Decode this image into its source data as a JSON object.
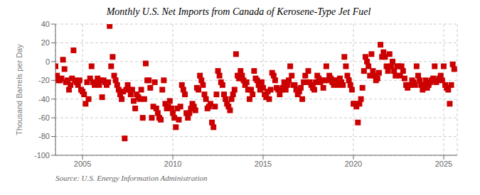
{
  "chart_data": {
    "type": "scatter",
    "title": "Monthly U.S. Net Imports from Canada of Kerosene-Type Jet Fuel",
    "ylabel": "Thousand Barrels per Day",
    "annotations": [
      "Source: U.S. Energy Information Administration"
    ],
    "color": "#cc0000",
    "marker": "square",
    "grid": true,
    "xlim": [
      2003.5,
      2025.75
    ],
    "xticks": [
      2005,
      2010,
      2015,
      2020,
      2025
    ],
    "ylim": [
      -100,
      40
    ],
    "yticks": [
      -100,
      -80,
      -60,
      -40,
      -20,
      0,
      20,
      40
    ],
    "x": [
      2003.5,
      2003.5833,
      2003.6667,
      2003.75,
      2003.8333,
      2003.9167,
      2004,
      2004.0833,
      2004.1667,
      2004.25,
      2004.3333,
      2004.4167,
      2004.5,
      2004.5833,
      2004.6667,
      2004.75,
      2004.8333,
      2004.9167,
      2005,
      2005.0833,
      2005.1667,
      2005.25,
      2005.3333,
      2005.4167,
      2005.5,
      2005.5833,
      2005.6667,
      2005.75,
      2005.8333,
      2005.9167,
      2006,
      2006.0833,
      2006.1667,
      2006.25,
      2006.3333,
      2006.4167,
      2006.5,
      2006.5833,
      2006.6667,
      2006.75,
      2006.8333,
      2006.9167,
      2007,
      2007.0833,
      2007.1667,
      2007.25,
      2007.3333,
      2007.4167,
      2007.5,
      2007.5833,
      2007.6667,
      2007.75,
      2007.8333,
      2007.9167,
      2008,
      2008.0833,
      2008.1667,
      2008.25,
      2008.3333,
      2008.4167,
      2008.5,
      2008.5833,
      2008.6667,
      2008.75,
      2008.8333,
      2008.9167,
      2009,
      2009.0833,
      2009.1667,
      2009.25,
      2009.3333,
      2009.4167,
      2009.5,
      2009.5833,
      2009.6667,
      2009.75,
      2009.8333,
      2009.9167,
      2010,
      2010.0833,
      2010.1667,
      2010.25,
      2010.3333,
      2010.4167,
      2010.5,
      2010.5833,
      2010.6667,
      2010.75,
      2010.8333,
      2010.9167,
      2011,
      2011.0833,
      2011.1667,
      2011.25,
      2011.3333,
      2011.4167,
      2011.5,
      2011.5833,
      2011.6667,
      2011.75,
      2011.8333,
      2011.9167,
      2012,
      2012.0833,
      2012.1667,
      2012.25,
      2012.3333,
      2012.4167,
      2012.5,
      2012.5833,
      2012.6667,
      2012.75,
      2012.8333,
      2012.9167,
      2013,
      2013.0833,
      2013.1667,
      2013.25,
      2013.3333,
      2013.4167,
      2013.5,
      2013.5833,
      2013.6667,
      2013.75,
      2013.8333,
      2013.9167,
      2014,
      2014.0833,
      2014.1667,
      2014.25,
      2014.3333,
      2014.4167,
      2014.5,
      2014.5833,
      2014.6667,
      2014.75,
      2014.8333,
      2014.9167,
      2015,
      2015.0833,
      2015.1667,
      2015.25,
      2015.3333,
      2015.4167,
      2015.5,
      2015.5833,
      2015.6667,
      2015.75,
      2015.8333,
      2015.9167,
      2016,
      2016.0833,
      2016.1667,
      2016.25,
      2016.3333,
      2016.4167,
      2016.5,
      2016.5833,
      2016.6667,
      2016.75,
      2016.8333,
      2016.9167,
      2017,
      2017.0833,
      2017.1667,
      2017.25,
      2017.3333,
      2017.4167,
      2017.5,
      2017.5833,
      2017.6667,
      2017.75,
      2017.8333,
      2017.9167,
      2018,
      2018.0833,
      2018.1667,
      2018.25,
      2018.3333,
      2018.4167,
      2018.5,
      2018.5833,
      2018.6667,
      2018.75,
      2018.8333,
      2018.9167,
      2019,
      2019.0833,
      2019.1667,
      2019.25,
      2019.3333,
      2019.4167,
      2019.5,
      2019.5833,
      2019.6667,
      2019.75,
      2019.8333,
      2019.9167,
      2020,
      2020.0833,
      2020.1667,
      2020.25,
      2020.3333,
      2020.4167,
      2020.5,
      2020.5833,
      2020.6667,
      2020.75,
      2020.8333,
      2020.9167,
      2021,
      2021.0833,
      2021.1667,
      2021.25,
      2021.3333,
      2021.4167,
      2021.5,
      2021.5833,
      2021.6667,
      2021.75,
      2021.8333,
      2021.9167,
      2022,
      2022.0833,
      2022.1667,
      2022.25,
      2022.3333,
      2022.4167,
      2022.5,
      2022.5833,
      2022.6667,
      2022.75,
      2022.8333,
      2022.9167,
      2023,
      2023.0833,
      2023.1667,
      2023.25,
      2023.3333,
      2023.4167,
      2023.5,
      2023.5833,
      2023.6667,
      2023.75,
      2023.8333,
      2023.9167,
      2024,
      2024.0833,
      2024.1667,
      2024.25,
      2024.3333,
      2024.4167,
      2024.5,
      2024.5833,
      2024.6667,
      2024.75,
      2024.8333,
      2024.9167,
      2025,
      2025.0833,
      2025.1667,
      2025.25,
      2025.3333,
      2025.4167,
      2025.5,
      2025.5833
    ],
    "values": [
      -5,
      -15,
      -20,
      -20,
      -18,
      2,
      -8,
      -22,
      -20,
      -30,
      -25,
      -18,
      12,
      -20,
      -22,
      -25,
      -20,
      -30,
      -32,
      -35,
      -45,
      -22,
      -40,
      -18,
      -5,
      -22,
      -25,
      -22,
      -18,
      -25,
      -20,
      -38,
      -20,
      -22,
      -25,
      -22,
      38,
      -5,
      5,
      -15,
      -20,
      -25,
      -30,
      -35,
      -40,
      -32,
      -82,
      -30,
      -25,
      -30,
      -35,
      -30,
      -42,
      -50,
      -35,
      -38,
      -40,
      -30,
      -60,
      -40,
      -2,
      -20,
      -20,
      -28,
      -60,
      -48,
      -22,
      -50,
      -55,
      -60,
      -62,
      -30,
      -20,
      -45,
      -50,
      -48,
      -42,
      -50,
      -55,
      -60,
      -70,
      -50,
      -62,
      -48,
      -25,
      -30,
      -35,
      -55,
      -60,
      -55,
      -50,
      -45,
      -48,
      -52,
      -28,
      -30,
      -15,
      -20,
      -25,
      -35,
      -40,
      -50,
      -48,
      -45,
      -65,
      -70,
      -48,
      -35,
      -10,
      -15,
      -22,
      -25,
      -35,
      -40,
      -45,
      -48,
      -52,
      -40,
      -35,
      -30,
      8,
      -15,
      -18,
      -10,
      -15,
      -20,
      -25,
      -22,
      -30,
      -40,
      -30,
      -35,
      -10,
      -18,
      -20,
      -25,
      -30,
      -22,
      -28,
      -35,
      -38,
      -32,
      -40,
      -30,
      -12,
      -15,
      -20,
      -28,
      -30,
      -35,
      -30,
      -28,
      -22,
      -30,
      -25,
      -20,
      -5,
      -15,
      -25,
      -25,
      -30,
      -35,
      -32,
      -28,
      -40,
      -22,
      -15,
      -22,
      -10,
      -22,
      -25,
      -28,
      -30,
      -22,
      -15,
      -18,
      -22,
      -20,
      -28,
      -20,
      -5,
      -20,
      -15,
      -18,
      -22,
      -25,
      -20,
      -20,
      -25,
      -18,
      -22,
      -25,
      5,
      -5,
      -15,
      -20,
      -25,
      -30,
      -45,
      -45,
      -48,
      -65,
      -45,
      -40,
      -28,
      -10,
      5,
      0,
      -5,
      -15,
      8,
      -10,
      -15,
      -20,
      -18,
      -12,
      18,
      5,
      10,
      5,
      -5,
      -10,
      8,
      -5,
      0,
      -10,
      -15,
      -5,
      -5,
      -15,
      -5,
      -10,
      -18,
      -25,
      -28,
      -25,
      -25,
      -20,
      -22,
      -25,
      -5,
      -15,
      -20,
      -25,
      -30,
      -25,
      -20,
      -28,
      -25,
      -22,
      -20,
      -18,
      -5,
      -22,
      -20,
      -18,
      -15,
      -20,
      -5,
      -25,
      -28,
      -30,
      -45,
      -25,
      -3,
      -8
    ]
  }
}
